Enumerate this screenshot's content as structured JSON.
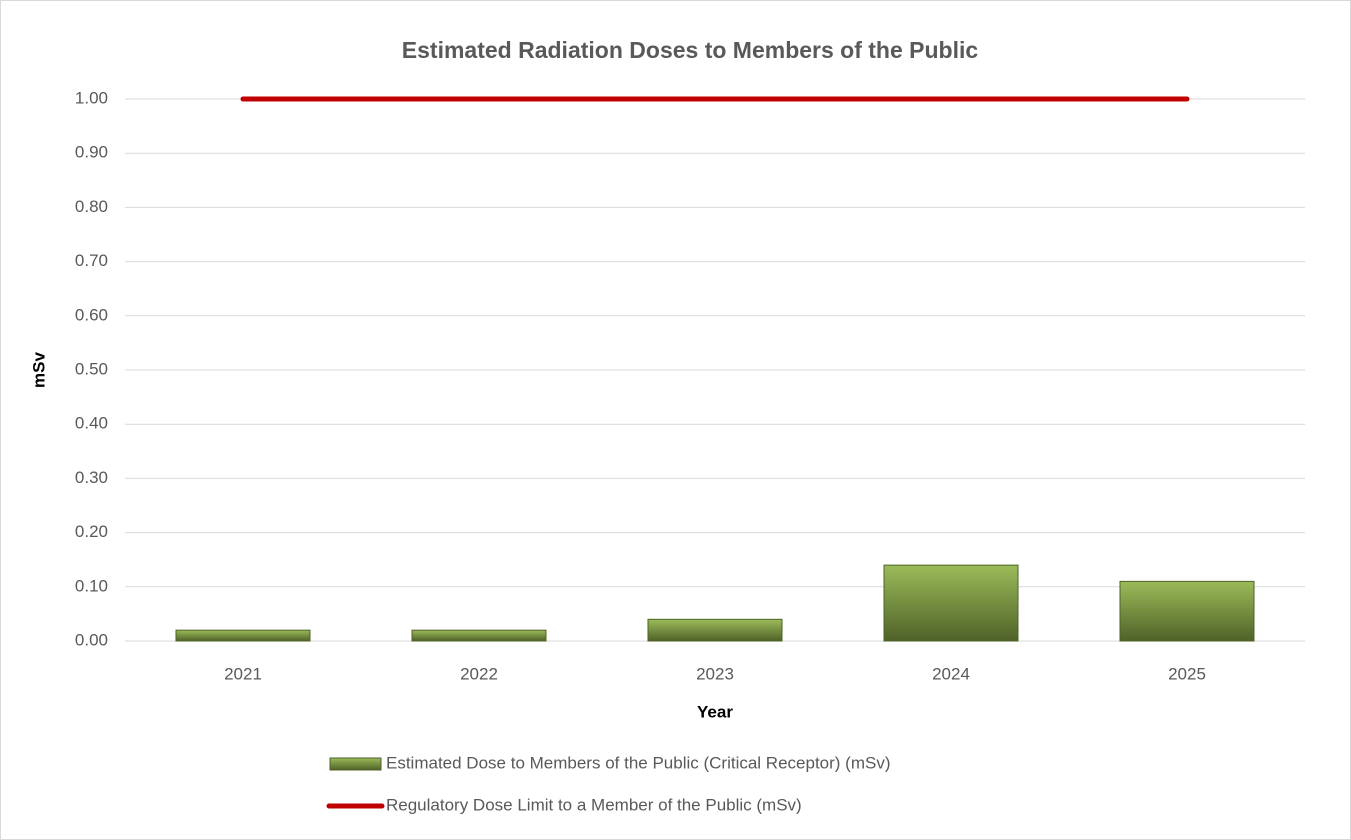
{
  "chart_data": {
    "type": "bar",
    "title": "Estimated Radiation Doses to Members of the Public",
    "x_label": "Year",
    "y_label": "mSv",
    "categories": [
      "2021",
      "2022",
      "2023",
      "2024",
      "2025"
    ],
    "series": [
      {
        "name": "Estimated Dose to Members of the Public (Critical Receptor) (mSv)",
        "type": "bar",
        "color": "#9bbb59",
        "values": [
          0.02,
          0.02,
          0.04,
          0.14,
          0.11
        ]
      },
      {
        "name": "Regulatory Dose Limit to a Member of the Public (mSv)",
        "type": "line",
        "color": "#c00000",
        "values": [
          1,
          1,
          1,
          1,
          1
        ]
      }
    ],
    "ylim": [
      0,
      1
    ],
    "yticks": [
      {
        "value": 0,
        "label": "0.00"
      },
      {
        "value": 0.1,
        "label": "0.10"
      },
      {
        "value": 0.2,
        "label": "0.20"
      },
      {
        "value": 0.3,
        "label": "0.30"
      },
      {
        "value": 0.4,
        "label": "0.40"
      },
      {
        "value": 0.5,
        "label": "0.50"
      },
      {
        "value": 0.6,
        "label": "0.60"
      },
      {
        "value": 0.7,
        "label": "0.70"
      },
      {
        "value": 0.8,
        "label": "0.80"
      },
      {
        "value": 0.9,
        "label": "0.90"
      },
      {
        "value": 1,
        "label": "1.00"
      }
    ],
    "grid": true,
    "legend": "bottom"
  }
}
